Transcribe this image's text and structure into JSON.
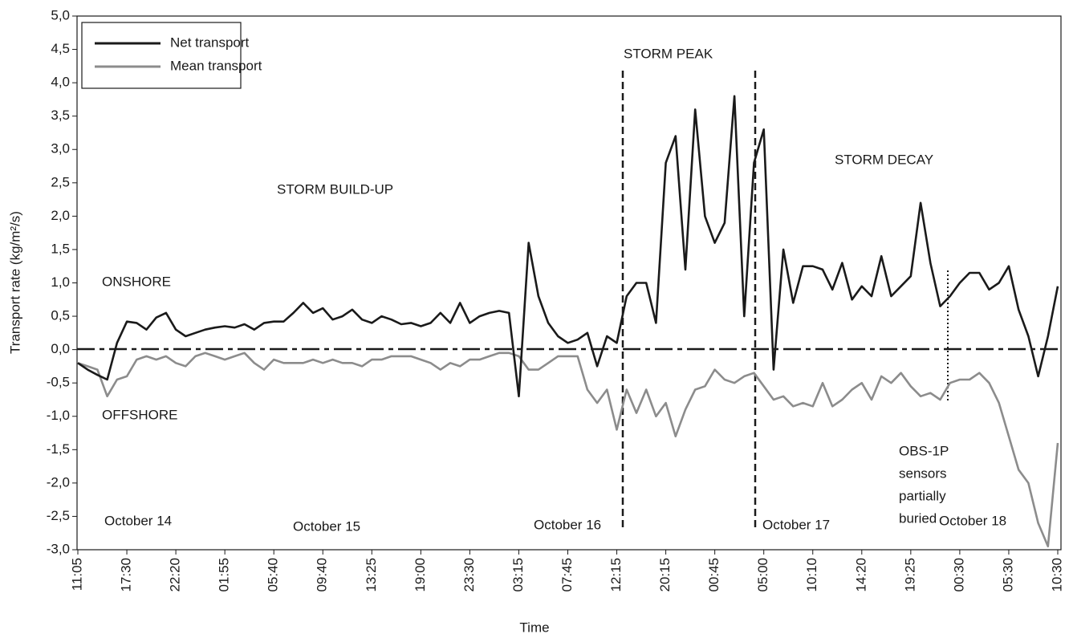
{
  "chart_data": {
    "type": "line",
    "y_label": "Transport rate (kg/m²/s)",
    "x_label": "Time",
    "categories": [
      "11:05",
      null,
      null,
      null,
      null,
      "17:30",
      null,
      null,
      null,
      null,
      "22:20",
      null,
      null,
      null,
      null,
      "01:55",
      null,
      null,
      null,
      null,
      "05:40",
      null,
      null,
      null,
      null,
      "09:40",
      null,
      null,
      null,
      null,
      "13:25",
      null,
      null,
      null,
      null,
      "19:00",
      null,
      null,
      null,
      null,
      "23:30",
      null,
      null,
      null,
      null,
      "03:15",
      null,
      null,
      null,
      null,
      "07:45",
      null,
      null,
      null,
      null,
      "12:15",
      null,
      null,
      null,
      null,
      "20:15",
      null,
      null,
      null,
      null,
      "00:45",
      null,
      null,
      null,
      null,
      "05:00",
      null,
      null,
      null,
      null,
      "10:10",
      null,
      null,
      null,
      null,
      "14:20",
      null,
      null,
      null,
      null,
      "19:25",
      null,
      null,
      null,
      null,
      "00:30",
      null,
      null,
      null,
      null,
      "05:30",
      null,
      null,
      null,
      null,
      "10:30"
    ],
    "series": [
      {
        "name": "Net transport",
        "color": "#1a1a1a",
        "values": [
          -0.2,
          -0.3,
          -0.38,
          -0.45,
          0.1,
          0.42,
          0.4,
          0.3,
          0.48,
          0.55,
          0.3,
          0.2,
          0.25,
          0.3,
          0.33,
          0.35,
          0.33,
          0.38,
          0.3,
          0.4,
          0.42,
          0.42,
          0.55,
          0.7,
          0.55,
          0.62,
          0.45,
          0.5,
          0.6,
          0.45,
          0.4,
          0.5,
          0.45,
          0.38,
          0.4,
          0.35,
          0.4,
          0.55,
          0.4,
          0.7,
          0.4,
          0.5,
          0.55,
          0.58,
          0.55,
          -0.7,
          1.6,
          0.8,
          0.4,
          0.2,
          0.1,
          0.15,
          0.25,
          -0.25,
          0.2,
          0.1,
          0.8,
          1.0,
          1.0,
          0.4,
          2.8,
          3.2,
          1.2,
          3.6,
          2.0,
          1.6,
          1.9,
          3.8,
          0.5,
          2.8,
          3.3,
          -0.3,
          1.5,
          0.7,
          1.25,
          1.25,
          1.2,
          0.9,
          1.3,
          0.75,
          0.95,
          0.8,
          1.4,
          0.8,
          0.95,
          1.1,
          2.2,
          1.3,
          0.65,
          0.8,
          1.0,
          1.15,
          1.15,
          0.9,
          1.0,
          1.25,
          0.6,
          0.2,
          -0.4,
          0.2,
          0.95
        ]
      },
      {
        "name": "Mean transport",
        "color": "#8c8c8c",
        "values": [
          -0.2,
          -0.25,
          -0.3,
          -0.7,
          -0.45,
          -0.4,
          -0.15,
          -0.1,
          -0.15,
          -0.1,
          -0.2,
          -0.25,
          -0.1,
          -0.05,
          -0.1,
          -0.15,
          -0.1,
          -0.05,
          -0.2,
          -0.3,
          -0.15,
          -0.2,
          -0.2,
          -0.2,
          -0.15,
          -0.2,
          -0.15,
          -0.2,
          -0.2,
          -0.25,
          -0.15,
          -0.15,
          -0.1,
          -0.1,
          -0.1,
          -0.15,
          -0.2,
          -0.3,
          -0.2,
          -0.25,
          -0.15,
          -0.15,
          -0.1,
          -0.05,
          -0.05,
          -0.1,
          -0.3,
          -0.3,
          -0.2,
          -0.1,
          -0.1,
          -0.1,
          -0.6,
          -0.8,
          -0.6,
          -1.2,
          -0.6,
          -0.95,
          -0.6,
          -1.0,
          -0.8,
          -1.3,
          -0.9,
          -0.6,
          -0.55,
          -0.3,
          -0.45,
          -0.5,
          -0.4,
          -0.35,
          -0.55,
          -0.75,
          -0.7,
          -0.85,
          -0.8,
          -0.85,
          -0.5,
          -0.85,
          -0.75,
          -0.6,
          -0.5,
          -0.75,
          -0.4,
          -0.5,
          -0.35,
          -0.55,
          -0.7,
          -0.65,
          -0.75,
          -0.5,
          -0.45,
          -0.45,
          -0.35,
          -0.5,
          -0.8,
          -1.3,
          -1.8,
          -2.0,
          -2.6,
          -2.95,
          -1.4
        ]
      }
    ],
    "ylim": [
      -3,
      5
    ],
    "yticks": [
      {
        "value": -3,
        "label": "-3,0"
      },
      {
        "value": -2.5,
        "label": "-2,5"
      },
      {
        "value": -2,
        "label": "-2,0"
      },
      {
        "value": -1.5,
        "label": "-1,5"
      },
      {
        "value": -1,
        "label": "-1,0"
      },
      {
        "value": -0.5,
        "label": "-0,5"
      },
      {
        "value": 0,
        "label": "0,0"
      },
      {
        "value": 0.5,
        "label": "0,5"
      },
      {
        "value": 1,
        "label": "1,0"
      },
      {
        "value": 1.5,
        "label": "1,5"
      },
      {
        "value": 2,
        "label": "2,0"
      },
      {
        "value": 2.5,
        "label": "2,5"
      },
      {
        "value": 3,
        "label": "3,0"
      },
      {
        "value": 3.5,
        "label": "3,5"
      },
      {
        "value": 4,
        "label": "4,0"
      },
      {
        "value": 4.5,
        "label": "4,5"
      },
      {
        "value": 5,
        "label": "5,0"
      }
    ],
    "grid": false,
    "legend": "top-left",
    "annotations": {
      "storm_peak": "STORM PEAK",
      "storm_build_up": "STORM BUILD-UP",
      "storm_decay": "STORM DECAY",
      "onshore": "ONSHORE",
      "offshore": "OFFSHORE",
      "days": [
        "October 14",
        "October 15",
        "October 16",
        "October 17",
        "October 18"
      ],
      "sensor_note": [
        "OBS-1P",
        "sensors",
        "partially",
        "buried"
      ]
    }
  }
}
